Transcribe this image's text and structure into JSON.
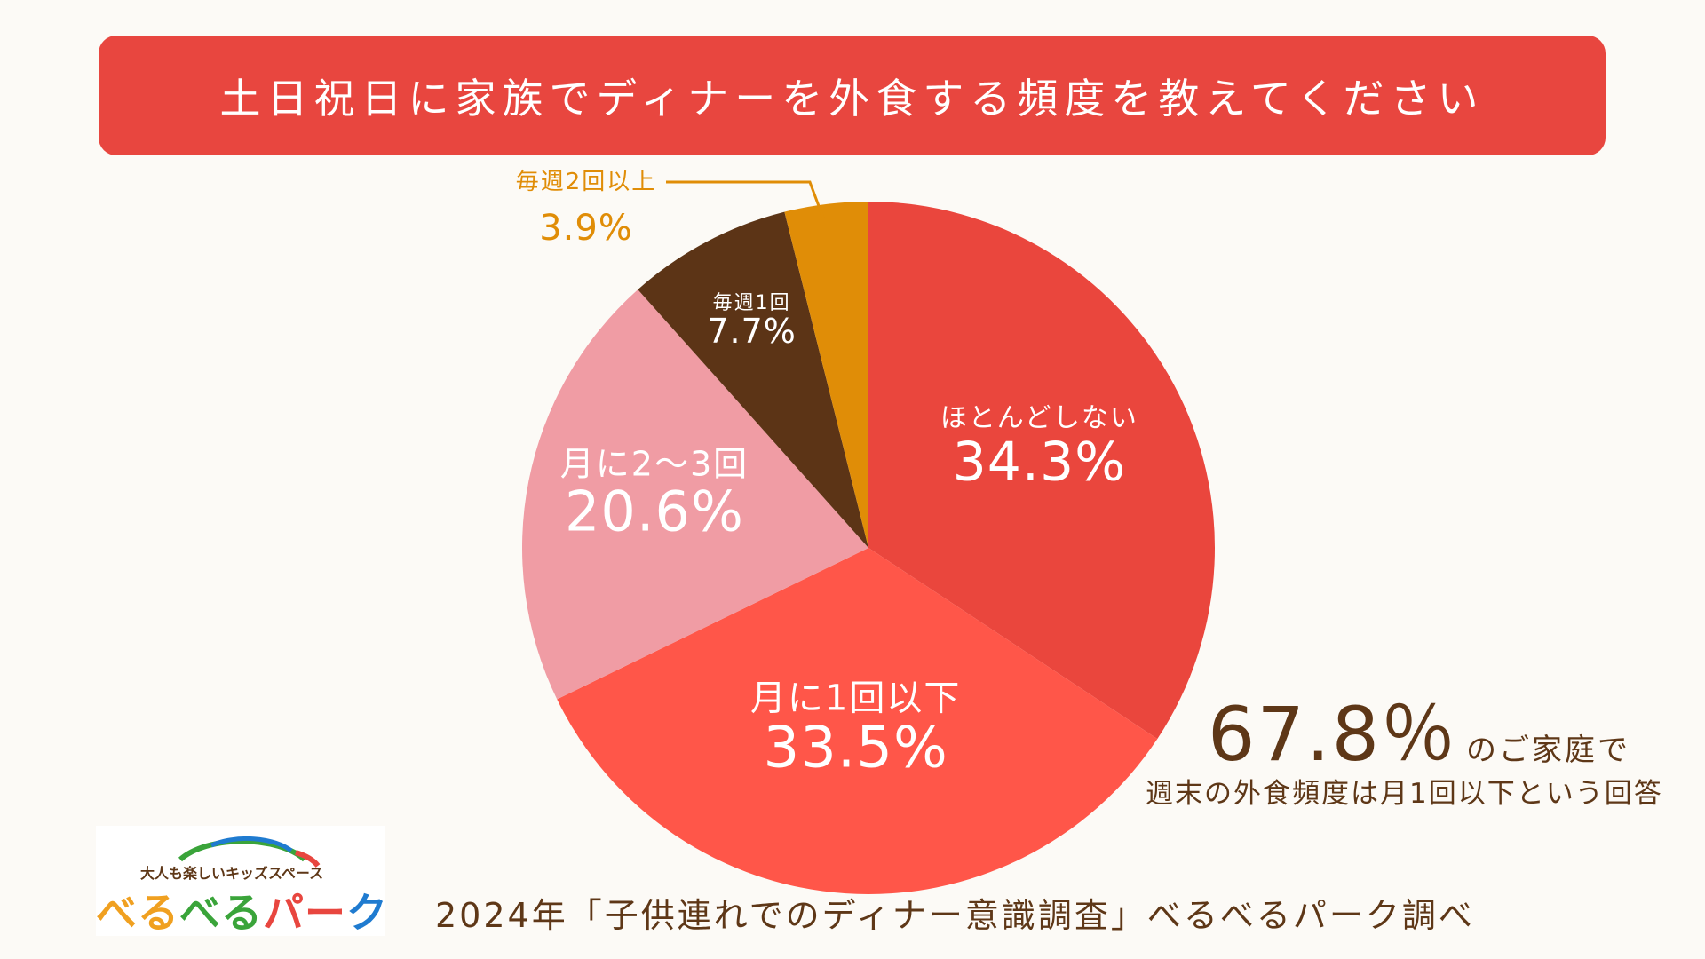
{
  "title": "土日祝日に家族でディナーを外食する頻度を教えてください",
  "chart_data": {
    "type": "pie",
    "title": "土日祝日に家族でディナーを外食する頻度を教えてください",
    "start_angle_deg": 0,
    "direction": "clockwise",
    "slices": [
      {
        "label": "ほとんどしない",
        "value": 34.3,
        "display": "34.3%",
        "color": "#ea463d",
        "label_color": "#ffffff"
      },
      {
        "label": "月に1回以下",
        "value": 33.5,
        "display": "33.5%",
        "color": "#ff5649",
        "label_color": "#ffffff"
      },
      {
        "label": "月に2〜3回",
        "value": 20.6,
        "display": "20.6%",
        "color": "#f09ca4",
        "label_color": "#ffffff"
      },
      {
        "label": "毎週1回",
        "value": 7.7,
        "display": "7.7%",
        "color": "#5c3416",
        "label_color": "#ffffff"
      },
      {
        "label": "毎週2回以上",
        "value": 3.9,
        "display": "3.9%",
        "color": "#e08d07",
        "label_color": "#e08d07"
      }
    ]
  },
  "callout": {
    "percent": "67.8％",
    "suffix": "のご家庭で",
    "sub": "週末の外食頻度は月1回以下という回答"
  },
  "logo": {
    "tagline": "大人も楽しいキッズスペース",
    "brand_parts": [
      "べる",
      "べる",
      "パー",
      "ク"
    ]
  },
  "footer": "2024年「子供連れでのディナー意識調査」べるべるパーク調べ"
}
